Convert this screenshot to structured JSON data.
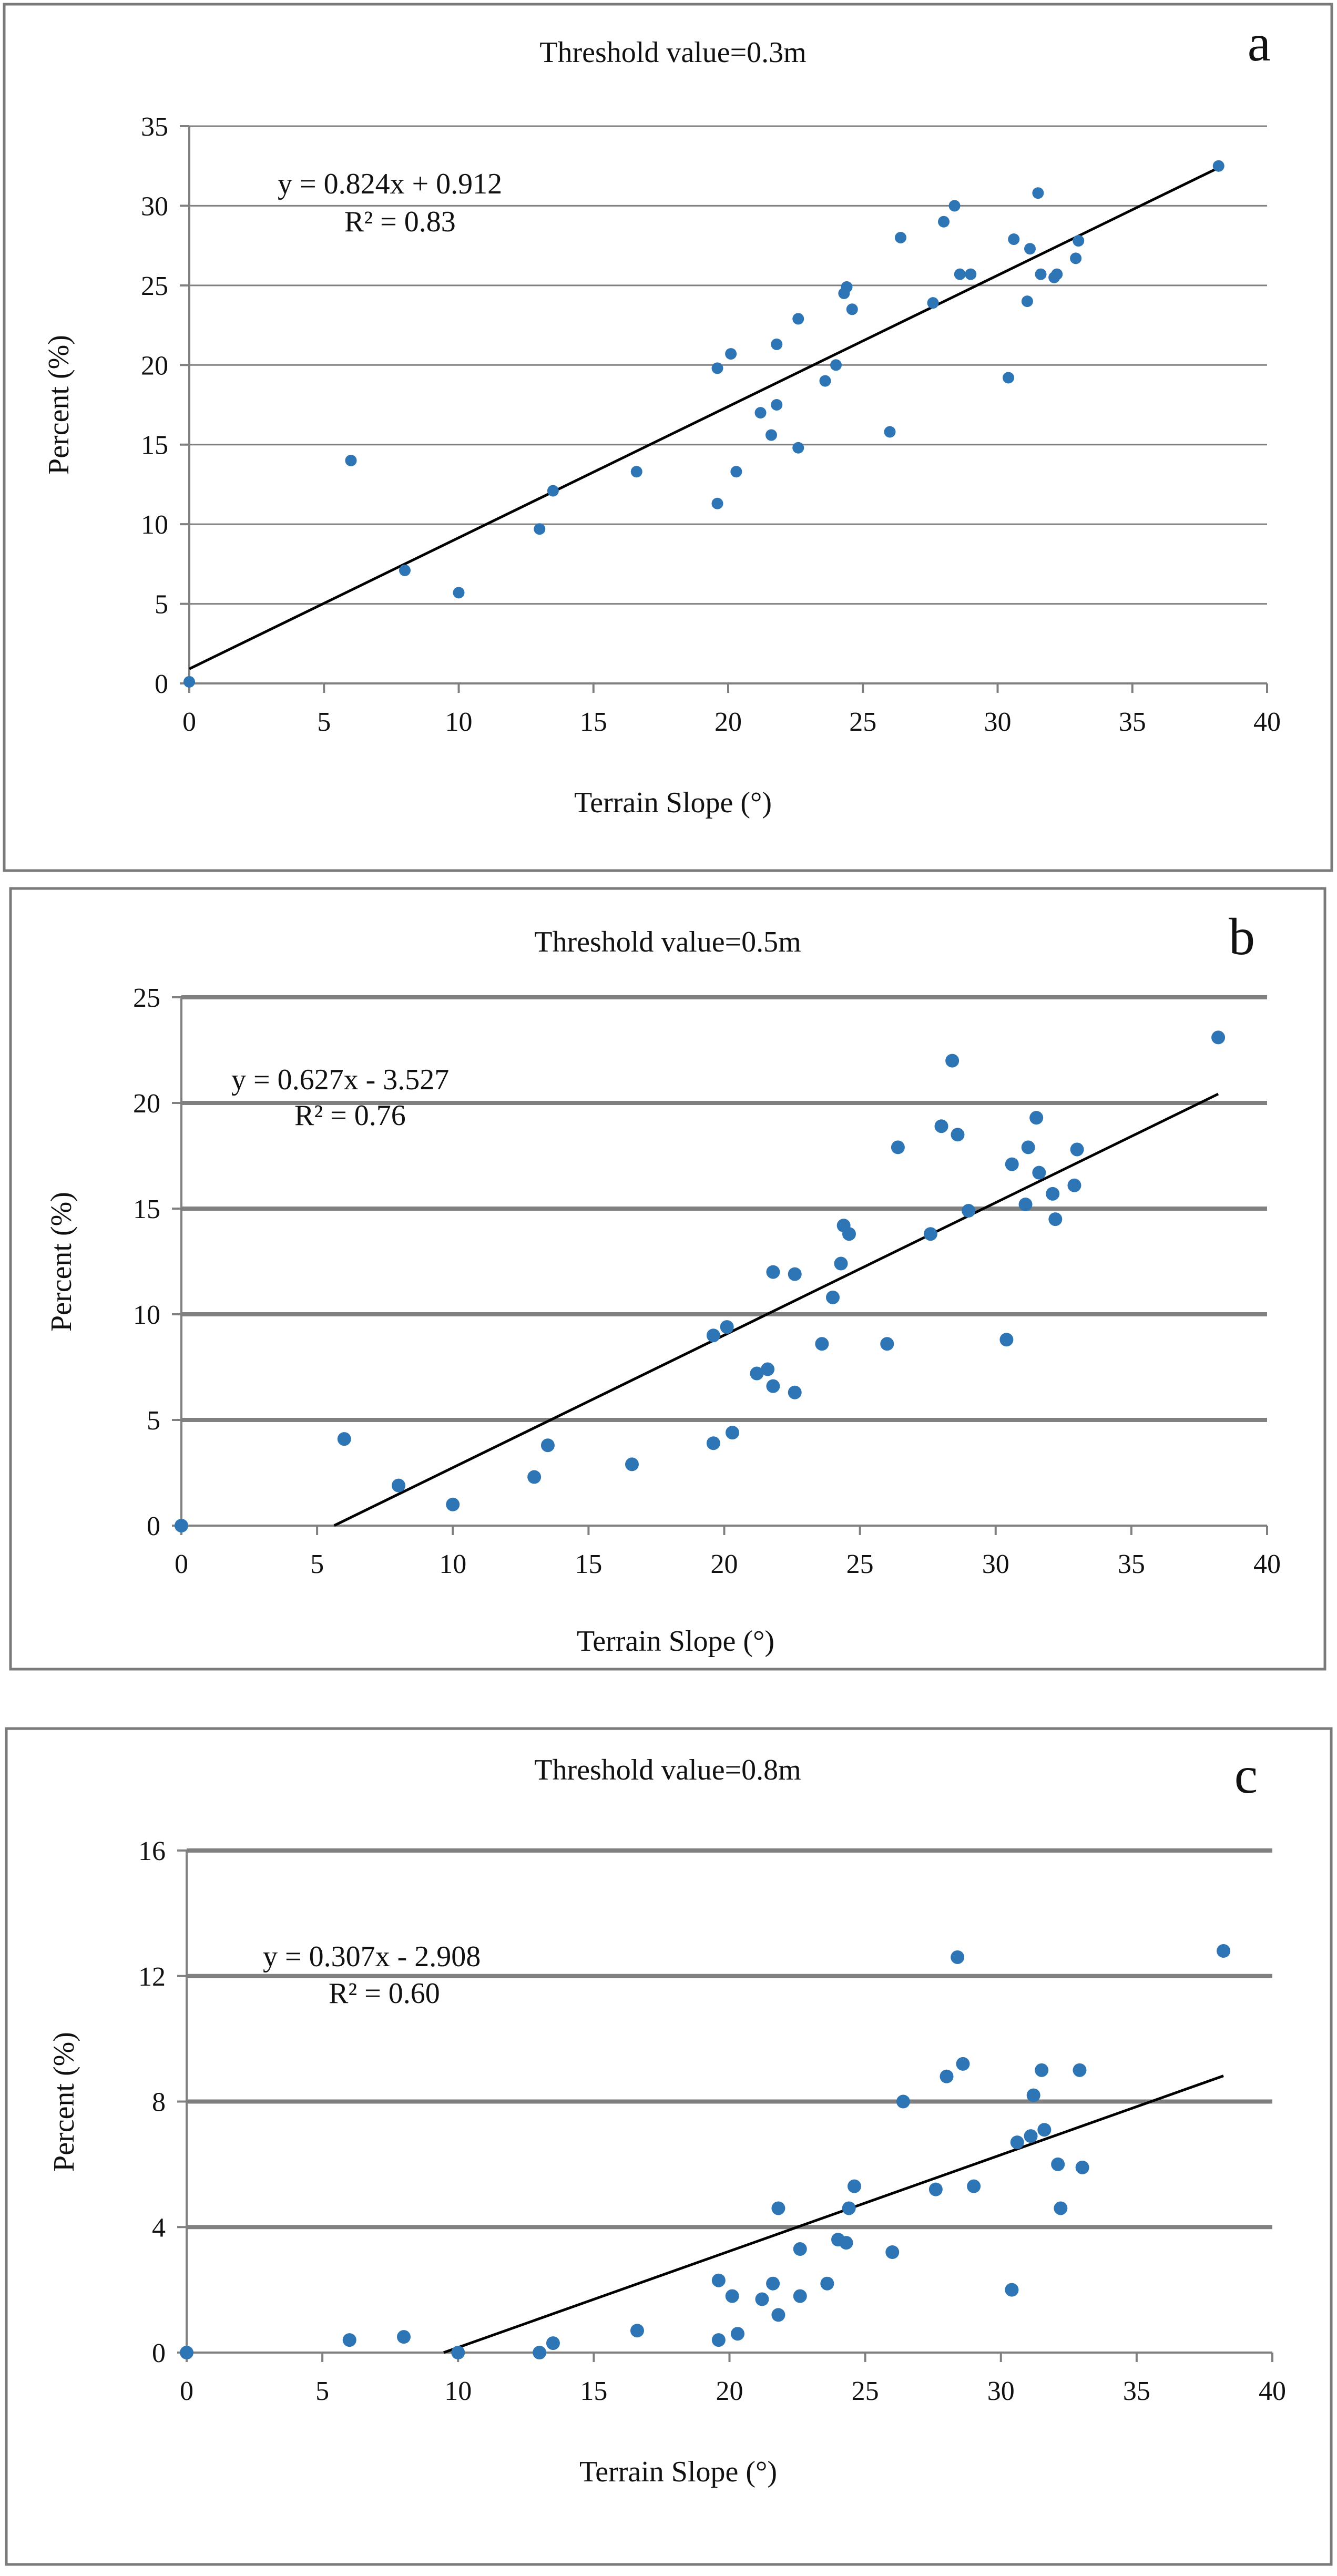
{
  "style": {
    "point_color": "#2E75B6",
    "grid_color": "#808080",
    "frame_color": "#7a7a7a",
    "trend_color": "#000000"
  },
  "chart_data": [
    {
      "type": "scatter",
      "panel": "a",
      "title": "Threshold value=0.3m",
      "xlabel": "Terrain Slope (°)",
      "ylabel": "Percent (%)",
      "xlim": [
        0,
        40
      ],
      "ylim": [
        0,
        35
      ],
      "xticks": [
        0,
        5,
        10,
        15,
        20,
        25,
        30,
        35,
        40
      ],
      "yticks": [
        0,
        5,
        10,
        15,
        20,
        25,
        30,
        35
      ],
      "equation": "y = 0.824x + 0.912",
      "r2": "R² = 0.83",
      "trend": {
        "slope": 0.824,
        "intercept": 0.912,
        "x_range": [
          0,
          38.2
        ]
      },
      "x": [
        0,
        6,
        8,
        10,
        13,
        13.5,
        16.6,
        19.6,
        19.6,
        20.1,
        20.3,
        21.2,
        21.6,
        21.8,
        21.8,
        22.6,
        22.6,
        23.6,
        24,
        24.3,
        24.4,
        24.6,
        26,
        26.4,
        27.6,
        28,
        28.4,
        28.6,
        29,
        30.4,
        30.6,
        31.1,
        31.2,
        31.5,
        31.6,
        32.1,
        32.2,
        32.9,
        33,
        38.2
      ],
      "y": [
        0.1,
        14,
        7.1,
        5.7,
        9.7,
        12.1,
        13.3,
        11.3,
        19.8,
        20.7,
        13.3,
        17,
        15.6,
        17.5,
        21.3,
        14.8,
        22.9,
        19,
        20,
        24.5,
        24.9,
        23.5,
        15.8,
        28,
        23.9,
        29,
        30,
        25.7,
        25.7,
        19.2,
        27.9,
        24,
        27.3,
        30.8,
        25.7,
        25.5,
        25.7,
        26.7,
        27.8,
        32.5
      ]
    },
    {
      "type": "scatter",
      "panel": "b",
      "title": "Threshold value=0.5m",
      "xlabel": "Terrain Slope (°)",
      "ylabel": "Percent (%)",
      "xlim": [
        0,
        40
      ],
      "ylim": [
        0,
        25
      ],
      "xticks": [
        0,
        5,
        10,
        15,
        20,
        25,
        30,
        35,
        40
      ],
      "yticks": [
        0,
        5,
        10,
        15,
        20,
        25
      ],
      "equation": "y = 0.627x - 3.527",
      "r2": "R² = 0.76",
      "trend": {
        "slope": 0.627,
        "intercept": -3.527,
        "x_range": [
          5.63,
          38.2
        ]
      },
      "x": [
        0,
        6,
        8,
        10,
        13,
        13.5,
        16.6,
        19.6,
        19.6,
        20.1,
        20.3,
        21.2,
        21.6,
        21.8,
        21.8,
        22.6,
        22.6,
        23.6,
        24,
        24.3,
        24.4,
        24.6,
        26,
        26.4,
        27.6,
        28,
        28.4,
        28.6,
        29,
        30.4,
        30.6,
        31.1,
        31.2,
        31.5,
        31.6,
        32.1,
        32.2,
        32.9,
        33,
        38.2
      ],
      "y": [
        0,
        4.1,
        1.9,
        1,
        2.3,
        3.8,
        2.9,
        3.9,
        9,
        9.4,
        4.4,
        7.2,
        7.4,
        6.6,
        12,
        6.3,
        11.9,
        8.6,
        10.8,
        12.4,
        14.2,
        13.8,
        8.6,
        17.9,
        13.8,
        18.9,
        22,
        18.5,
        14.9,
        8.8,
        17.1,
        15.2,
        17.9,
        19.3,
        16.7,
        15.7,
        14.5,
        16.1,
        17.8,
        23.1
      ]
    },
    {
      "type": "scatter",
      "panel": "c",
      "title": "Threshold value=0.8m",
      "xlabel": "Terrain Slope (°)",
      "ylabel": "Percent (%)",
      "xlim": [
        0,
        40
      ],
      "ylim": [
        0,
        16
      ],
      "xticks": [
        0,
        5,
        10,
        15,
        20,
        25,
        30,
        35,
        40
      ],
      "yticks": [
        0,
        4,
        8,
        12,
        16
      ],
      "equation": "y = 0.307x - 2.908",
      "r2": "R² = 0.60",
      "trend": {
        "slope": 0.307,
        "intercept": -2.908,
        "x_range": [
          9.47,
          38.2
        ]
      },
      "x": [
        0,
        6,
        8,
        10,
        13,
        13.5,
        16.6,
        19.6,
        19.6,
        20.1,
        20.3,
        21.2,
        21.6,
        21.8,
        21.8,
        22.6,
        22.6,
        23.6,
        24,
        24.3,
        24.4,
        24.6,
        26,
        26.4,
        27.6,
        28,
        28.4,
        28.6,
        29,
        30.4,
        30.6,
        31.1,
        31.2,
        31.5,
        31.6,
        32.1,
        32.2,
        32.9,
        33,
        38.2
      ],
      "y": [
        0,
        0.4,
        0.5,
        0,
        0,
        0.3,
        0.7,
        0.4,
        2.3,
        1.8,
        0.6,
        1.7,
        2.2,
        1.2,
        4.6,
        1.8,
        3.3,
        2.2,
        3.6,
        3.5,
        4.6,
        5.3,
        3.2,
        8,
        5.2,
        8.8,
        12.6,
        9.2,
        5.3,
        2,
        6.7,
        6.9,
        8.2,
        9,
        7.1,
        6,
        4.6,
        9,
        5.9,
        12.8
      ]
    }
  ]
}
